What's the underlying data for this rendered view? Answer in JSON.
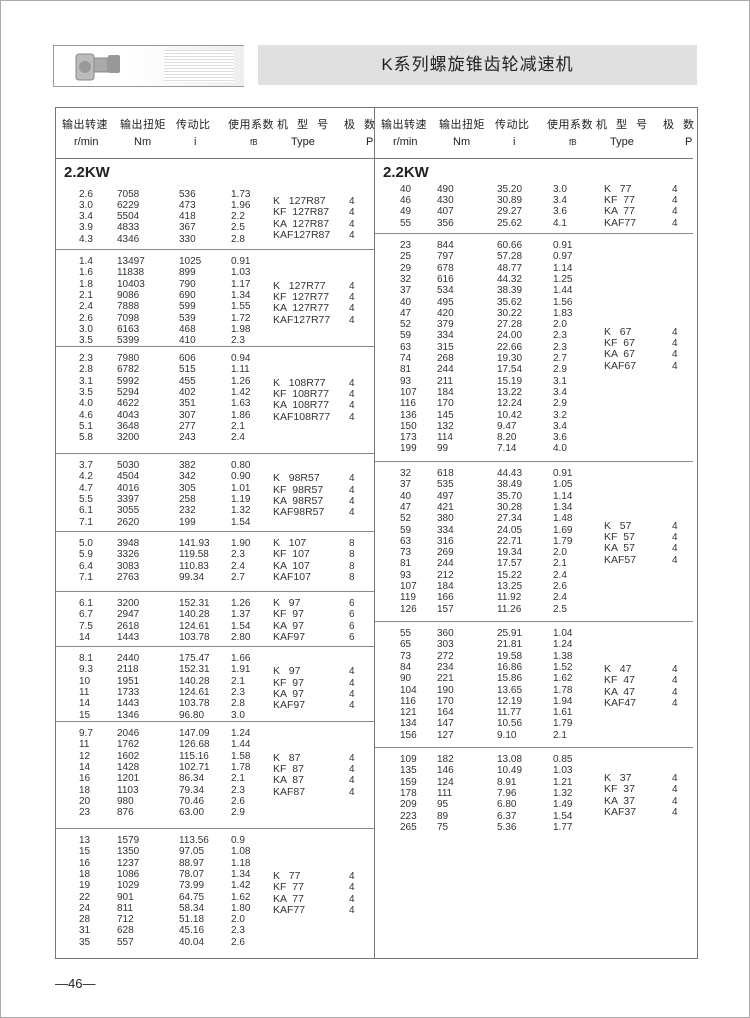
{
  "header": {
    "title": "K系列螺旋锥齿轮减速机"
  },
  "columns": [
    {
      "cn": "输出转速",
      "en": "r/min"
    },
    {
      "cn": "输出扭矩",
      "en": "Nm"
    },
    {
      "cn": "传动比",
      "en": "i"
    },
    {
      "cn": "使用系数",
      "en": "fB"
    },
    {
      "cn": "机 型 号",
      "en": "Type"
    },
    {
      "cn": "极  数",
      "en": "P"
    }
  ],
  "left": {
    "section": "2.2KW",
    "groups": [
      {
        "rows": [
          [
            "2.6",
            "7058",
            "536",
            "1.73"
          ],
          [
            "3.0",
            "6229",
            "473",
            "1.96"
          ],
          [
            "3.4",
            "5504",
            "418",
            "2.2"
          ],
          [
            "3.9",
            "4833",
            "367",
            "2.5"
          ],
          [
            "4.3",
            "4346",
            "330",
            "2.8"
          ]
        ],
        "types": [
          "K   127R87",
          "KF  127R87",
          "KA  127R87",
          "KAF127R87"
        ],
        "poles": [
          "4",
          "4",
          "4",
          "4"
        ]
      },
      {
        "rows": [
          [
            "1.4",
            "13497",
            "1025",
            "0.91"
          ],
          [
            "1.6",
            "11838",
            "899",
            "1.03"
          ],
          [
            "1.8",
            "10403",
            "790",
            "1.17"
          ],
          [
            "2.1",
            "9086",
            "690",
            "1.34"
          ],
          [
            "2.4",
            "7888",
            "599",
            "1.55"
          ],
          [
            "2.6",
            "7098",
            "539",
            "1.72"
          ],
          [
            "3.0",
            "6163",
            "468",
            "1.98"
          ],
          [
            "3.5",
            "5399",
            "410",
            "2.3"
          ]
        ],
        "types": [
          "K   127R77",
          "KF  127R77",
          "KA  127R77",
          "KAF127R77"
        ],
        "poles": [
          "4",
          "4",
          "4",
          "4"
        ]
      },
      {
        "rows": [
          [
            "2.3",
            "7980",
            "606",
            "0.94"
          ],
          [
            "2.8",
            "6782",
            "515",
            "1.11"
          ],
          [
            "3.1",
            "5992",
            "455",
            "1.26"
          ],
          [
            "3.5",
            "5294",
            "402",
            "1.42"
          ],
          [
            "4.0",
            "4622",
            "351",
            "1.63"
          ],
          [
            "4.6",
            "4043",
            "307",
            "1.86"
          ],
          [
            "5.1",
            "3648",
            "277",
            "2.1"
          ],
          [
            "5.8",
            "3200",
            "243",
            "2.4"
          ]
        ],
        "types": [
          "K   108R77",
          "KF  108R77",
          "KA  108R77",
          "KAF108R77"
        ],
        "poles": [
          "4",
          "4",
          "4",
          "4"
        ]
      },
      {
        "rows": [
          [
            "3.7",
            "5030",
            "382",
            "0.80"
          ],
          [
            "4.2",
            "4504",
            "342",
            "0.90"
          ],
          [
            "4.7",
            "4016",
            "305",
            "1.01"
          ],
          [
            "5.5",
            "3397",
            "258",
            "1.19"
          ],
          [
            "6.1",
            "3055",
            "232",
            "1.32"
          ],
          [
            "7.1",
            "2620",
            "199",
            "1.54"
          ]
        ],
        "types": [
          "K   98R57",
          "KF  98R57",
          "KA  98R57",
          "KAF98R57"
        ],
        "poles": [
          "4",
          "4",
          "4",
          "4"
        ]
      },
      {
        "rows": [
          [
            "5.0",
            "3948",
            "141.93",
            "1.90"
          ],
          [
            "5.9",
            "3326",
            "119.58",
            "2.3"
          ],
          [
            "6.4",
            "3083",
            "110.83",
            "2.4"
          ],
          [
            "7.1",
            "2763",
            "99.34",
            "2.7"
          ]
        ],
        "types": [
          "K   107",
          "KF  107",
          "KA  107",
          "KAF107"
        ],
        "poles": [
          "8",
          "8",
          "8",
          "8"
        ]
      },
      {
        "rows": [
          [
            "6.1",
            "3200",
            "152.31",
            "1.26"
          ],
          [
            "6.7",
            "2947",
            "140.28",
            "1.37"
          ],
          [
            "7.5",
            "2618",
            "124.61",
            "1.54"
          ],
          [
            "14",
            "1443",
            "103.78",
            "2.80"
          ]
        ],
        "types": [
          "K   97",
          "KF  97",
          "KA  97",
          "KAF97"
        ],
        "poles": [
          "6",
          "6",
          "6",
          "6"
        ]
      },
      {
        "rows": [
          [
            "8.1",
            "2440",
            "175.47",
            "1.66"
          ],
          [
            "9.3",
            "2118",
            "152.31",
            "1.91"
          ],
          [
            "10",
            "1951",
            "140.28",
            "2.1"
          ],
          [
            "11",
            "1733",
            "124.61",
            "2.3"
          ],
          [
            "14",
            "1443",
            "103.78",
            "2.8"
          ],
          [
            "15",
            "1346",
            "96.80",
            "3.0"
          ]
        ],
        "types": [
          "K   97",
          "KF  97",
          "KA  97",
          "KAF97"
        ],
        "poles": [
          "4",
          "4",
          "4",
          "4"
        ]
      },
      {
        "rows": [
          [
            "9.7",
            "2046",
            "147.09",
            "1.24"
          ],
          [
            "11",
            "1762",
            "126.68",
            "1.44"
          ],
          [
            "12",
            "1602",
            "115.16",
            "1.58"
          ],
          [
            "14",
            "1428",
            "102.71",
            "1.78"
          ],
          [
            "16",
            "1201",
            "86.34",
            "2.1"
          ],
          [
            "18",
            "1103",
            "79.34",
            "2.3"
          ],
          [
            "20",
            "980",
            "70.46",
            "2.6"
          ],
          [
            "23",
            "876",
            "63.00",
            "2.9"
          ]
        ],
        "types": [
          "K   87",
          "KF  87",
          "KA  87",
          "KAF87"
        ],
        "poles": [
          "4",
          "4",
          "4",
          "4"
        ]
      },
      {
        "rows": [
          [
            "13",
            "1579",
            "113.56",
            "0.9"
          ],
          [
            "15",
            "1350",
            "97.05",
            "1.08"
          ],
          [
            "16",
            "1237",
            "88.97",
            "1.18"
          ],
          [
            "18",
            "1086",
            "78.07",
            "1.34"
          ],
          [
            "19",
            "1029",
            "73.99",
            "1.42"
          ],
          [
            "22",
            "901",
            "64.75",
            "1.62"
          ],
          [
            "24",
            "811",
            "58.34",
            "1.80"
          ],
          [
            "28",
            "712",
            "51.18",
            "2.0"
          ],
          [
            "31",
            "628",
            "45.16",
            "2.3"
          ],
          [
            "35",
            "557",
            "40.04",
            "2.6"
          ]
        ],
        "types": [
          "K   77",
          "KF  77",
          "KA  77",
          "KAF77"
        ],
        "poles": [
          "4",
          "4",
          "4",
          "4"
        ]
      }
    ]
  },
  "right": {
    "section": "2.2KW",
    "groups": [
      {
        "rows": [
          [
            "40",
            "490",
            "35.20",
            "3.0"
          ],
          [
            "46",
            "430",
            "30.89",
            "3.4"
          ],
          [
            "49",
            "407",
            "29.27",
            "3.6"
          ],
          [
            "55",
            "356",
            "25.62",
            "4.1"
          ]
        ],
        "types": [
          "K   77",
          "KF  77",
          "KA  77",
          "KAF77"
        ],
        "poles": [
          "4",
          "4",
          "4",
          "4"
        ]
      },
      {
        "rows": [
          [
            "23",
            "844",
            "60.66",
            "0.91"
          ],
          [
            "25",
            "797",
            "57.28",
            "0.97"
          ],
          [
            "29",
            "678",
            "48.77",
            "1.14"
          ],
          [
            "32",
            "616",
            "44.32",
            "1.25"
          ],
          [
            "37",
            "534",
            "38.39",
            "1.44"
          ],
          [
            "40",
            "495",
            "35.62",
            "1.56"
          ],
          [
            "47",
            "420",
            "30.22",
            "1.83"
          ],
          [
            "52",
            "379",
            "27.28",
            "2.0"
          ],
          [
            "59",
            "334",
            "24.00",
            "2.3"
          ],
          [
            "63",
            "315",
            "22.66",
            "2.3"
          ],
          [
            "74",
            "268",
            "19.30",
            "2.7"
          ],
          [
            "81",
            "244",
            "17.54",
            "2.9"
          ],
          [
            "93",
            "211",
            "15.19",
            "3.1"
          ],
          [
            "107",
            "184",
            "13.22",
            "3.4"
          ],
          [
            "116",
            "170",
            "12.24",
            "2.9"
          ],
          [
            "136",
            "145",
            "10.42",
            "3.2"
          ],
          [
            "150",
            "132",
            "9.47",
            "3.4"
          ],
          [
            "173",
            "114",
            "8.20",
            "3.6"
          ],
          [
            "199",
            "99",
            "7.14",
            "4.0"
          ]
        ],
        "types": [
          "K   67",
          "KF  67",
          "KA  67",
          "KAF67"
        ],
        "poles": [
          "4",
          "4",
          "4",
          "4"
        ]
      },
      {
        "rows": [
          [
            "32",
            "618",
            "44.43",
            "0.91"
          ],
          [
            "37",
            "535",
            "38.49",
            "1.05"
          ],
          [
            "40",
            "497",
            "35.70",
            "1.14"
          ],
          [
            "47",
            "421",
            "30.28",
            "1.34"
          ],
          [
            "52",
            "380",
            "27.34",
            "1.48"
          ],
          [
            "59",
            "334",
            "24.05",
            "1.69"
          ],
          [
            "63",
            "316",
            "22.71",
            "1.79"
          ],
          [
            "73",
            "269",
            "19.34",
            "2.0"
          ],
          [
            "81",
            "244",
            "17.57",
            "2.1"
          ],
          [
            "93",
            "212",
            "15.22",
            "2.4"
          ],
          [
            "107",
            "184",
            "13.25",
            "2.6"
          ],
          [
            "119",
            "166",
            "11.92",
            "2.4"
          ],
          [
            "126",
            "157",
            "11.26",
            "2.5"
          ]
        ],
        "types": [
          "K   57",
          "KF  57",
          "KA  57",
          "KAF57"
        ],
        "poles": [
          "4",
          "4",
          "4",
          "4"
        ]
      },
      {
        "rows": [
          [
            "55",
            "360",
            "25.91",
            "1.04"
          ],
          [
            "65",
            "303",
            "21.81",
            "1.24"
          ],
          [
            "73",
            "272",
            "19.58",
            "1.38"
          ],
          [
            "84",
            "234",
            "16.86",
            "1.52"
          ],
          [
            "90",
            "221",
            "15.86",
            "1.62"
          ],
          [
            "104",
            "190",
            "13.65",
            "1.78"
          ],
          [
            "116",
            "170",
            "12.19",
            "1.94"
          ],
          [
            "121",
            "164",
            "11.77",
            "1.61"
          ],
          [
            "134",
            "147",
            "10.56",
            "1.79"
          ],
          [
            "156",
            "127",
            "9.10",
            "2.1"
          ]
        ],
        "types": [
          "K   47",
          "KF  47",
          "KA  47",
          "KAF47"
        ],
        "poles": [
          "4",
          "4",
          "4",
          "4"
        ]
      },
      {
        "rows": [
          [
            "109",
            "182",
            "13.08",
            "0.85"
          ],
          [
            "135",
            "146",
            "10.49",
            "1.03"
          ],
          [
            "159",
            "124",
            "8.91",
            "1.21"
          ],
          [
            "178",
            "111",
            "7.96",
            "1.32"
          ],
          [
            "209",
            "95",
            "6.80",
            "1.49"
          ],
          [
            "223",
            "89",
            "6.37",
            "1.54"
          ],
          [
            "265",
            "75",
            "5.36",
            "1.77"
          ]
        ],
        "types": [
          "K   37",
          "KF  37",
          "KA  37",
          "KAF37"
        ],
        "poles": [
          "4",
          "4",
          "4",
          "4"
        ]
      }
    ]
  },
  "footer": {
    "page_number": "—46—"
  }
}
